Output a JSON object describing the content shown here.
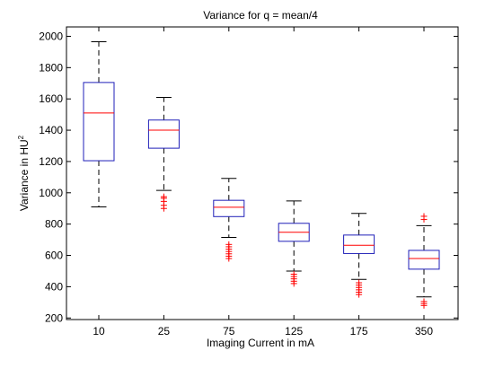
{
  "chart_data": {
    "type": "box",
    "title": "Variance for q = mean/4",
    "xlabel": "Imaging Current in mA",
    "ylabel": {
      "prefix": "Variance in HU",
      "superscript": "2"
    },
    "ylim": [
      190,
      2060
    ],
    "yticks": [
      200,
      400,
      600,
      800,
      1000,
      1200,
      1400,
      1600,
      1800,
      2000
    ],
    "categories": [
      "10",
      "25",
      "75",
      "125",
      "175",
      "350"
    ],
    "boxes": [
      {
        "category": "10",
        "whisker_low": 910,
        "q1": 1205,
        "median": 1510,
        "q3": 1705,
        "whisker_high": 1965,
        "outliers": []
      },
      {
        "category": "25",
        "whisker_low": 1015,
        "q1": 1285,
        "median": 1400,
        "q3": 1465,
        "whisker_high": 1610,
        "outliers": [
          900,
          920,
          945,
          965,
          975
        ]
      },
      {
        "category": "75",
        "whisker_low": 715,
        "q1": 848,
        "median": 908,
        "q3": 952,
        "whisker_high": 1092,
        "outliers": [
          580,
          595,
          610,
          625,
          640,
          655,
          670
        ]
      },
      {
        "category": "125",
        "whisker_low": 500,
        "q1": 690,
        "median": 748,
        "q3": 805,
        "whisker_high": 948,
        "outliers": [
          420,
          435,
          450,
          465,
          480
        ]
      },
      {
        "category": "175",
        "whisker_low": 447,
        "q1": 612,
        "median": 665,
        "q3": 730,
        "whisker_high": 868,
        "outliers": [
          350,
          365,
          380,
          395,
          410,
          425
        ]
      },
      {
        "category": "350",
        "whisker_low": 335,
        "q1": 512,
        "median": 580,
        "q3": 632,
        "whisker_high": 790,
        "outliers": [
          280,
          292,
          305,
          830,
          850
        ]
      }
    ],
    "colors": {
      "box": "#1f1fb8",
      "median": "#ff0000",
      "outlier": "#ff0000",
      "whisker": "#000000",
      "axes": "#000000",
      "background": "#ffffff"
    },
    "grid": false,
    "legend": "none"
  }
}
